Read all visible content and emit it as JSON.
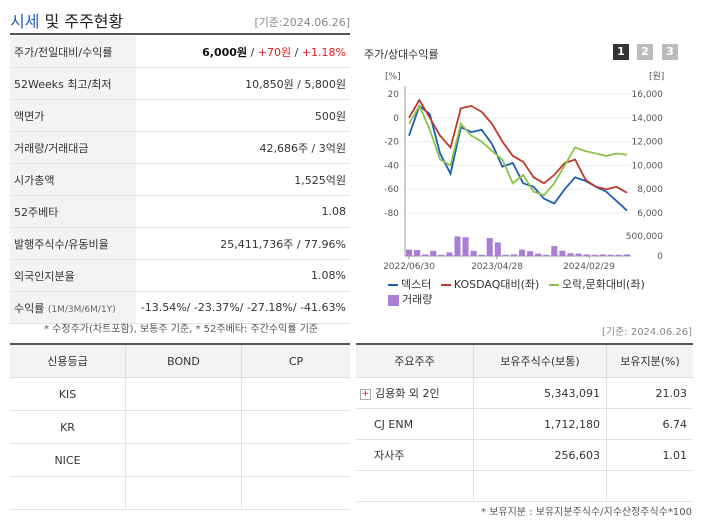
{
  "header": {
    "title_a": "시세",
    "title_b": " 및 주주현황",
    "date": "[기준:2024.06.26]"
  },
  "stock_info": {
    "rows": [
      {
        "label": "주가/전일대비/수익률"
      },
      {
        "label": "52Weeks 최고/최저",
        "value": "10,850원 / 5,800원"
      },
      {
        "label": "액면가",
        "value": "500원"
      },
      {
        "label": "거래량/거래대금",
        "value": "42,686주 / 3억원"
      },
      {
        "label": "시가총액",
        "value": "1,525억원"
      },
      {
        "label": "52주베타",
        "value": "1.08"
      },
      {
        "label": "발행주식수/유동비율",
        "value": "25,411,736주 / 77.96%"
      },
      {
        "label": "외국인지분율",
        "value": "1.08%"
      }
    ],
    "price": "6,000원",
    "sep": " / ",
    "change": "+70원",
    "rate": "+1.18%",
    "return_label": "수익률",
    "return_period": "(1M/3M/6M/1Y)",
    "returns": "-13.54%/ -23.37%/ -27.18%/ -41.63%"
  },
  "note_top": "* 수정주가(차트포함), 보통주 기준, * 52주베타: 주간수익률 기준",
  "chart": {
    "title": "주가/상대수익률",
    "tabs": [
      "1",
      "2",
      "3"
    ],
    "left_unit": "[%]",
    "right_unit": "[원]",
    "legend": {
      "s1": "덱스터",
      "s2": "KOSDAQ대비(좌)",
      "s3": "오락,문화대비(좌)",
      "vol": "거래량"
    }
  },
  "chart_data": {
    "type": "line",
    "x_ticks": [
      "2022/06/30",
      "2023/04/28",
      "2024/02/29"
    ],
    "left_axis": {
      "label": "[%]",
      "range": [
        -80,
        20
      ],
      "ticks": [
        20,
        0,
        -20,
        -40,
        -60,
        -80
      ]
    },
    "right_axis": {
      "label": "[원]",
      "range": [
        6000,
        16000
      ],
      "ticks": [
        16000,
        14000,
        12000,
        10000,
        8000,
        6000
      ]
    },
    "volume_axis": {
      "ticks": [
        500000,
        0
      ]
    },
    "series": [
      {
        "name": "덱스터",
        "color": "#1a5fb4",
        "values": [
          -15,
          10,
          3,
          -30,
          -47,
          -8,
          -12,
          -10,
          -22,
          -41,
          -38,
          -55,
          -58,
          -68,
          -72,
          -60,
          -50,
          -53,
          -58,
          -62,
          -70,
          -78
        ]
      },
      {
        "name": "KOSDAQ대비(좌)",
        "color": "#c0392b",
        "values": [
          0,
          15,
          0,
          -15,
          -25,
          8,
          10,
          5,
          -5,
          -20,
          -32,
          -37,
          -50,
          -55,
          -48,
          -38,
          -35,
          -52,
          -58,
          -60,
          -58,
          -63
        ]
      },
      {
        "name": "오락,문화대비(좌)",
        "color": "#8bc34a",
        "values": [
          -5,
          10,
          -10,
          -35,
          -40,
          -5,
          -15,
          -20,
          -28,
          -35,
          -55,
          -48,
          -62,
          -65,
          -55,
          -40,
          -25,
          -28,
          -30,
          -32,
          -30,
          -31
        ]
      },
      {
        "name": "거래량",
        "color": "#a97fd6",
        "values": [
          160000,
          150000,
          40000,
          130000,
          30000,
          90000,
          490000,
          470000,
          130000,
          30000,
          450000,
          340000,
          30000,
          40000,
          160000,
          120000,
          60000,
          30000,
          250000,
          130000,
          70000,
          60000,
          40000,
          30000,
          40000,
          30000,
          30000,
          40000
        ]
      }
    ]
  },
  "credit": {
    "headers": [
      "신용등급",
      "BOND",
      "CP"
    ],
    "rows": [
      {
        "agency": "KIS"
      },
      {
        "agency": "KR"
      },
      {
        "agency": "NICE"
      }
    ]
  },
  "holders": {
    "headers": [
      "주요주주",
      "보유주식수(보통)",
      "보유지분(%)"
    ],
    "rows": [
      {
        "name": "김용화 외 2인",
        "shares": "5,343,091",
        "pct": "21.03"
      },
      {
        "name": "CJ ENM",
        "shares": "1,712,180",
        "pct": "6.74"
      },
      {
        "name": "자사주",
        "shares": "256,603",
        "pct": "1.01"
      }
    ]
  },
  "date_bottom": "[기준: 2024.06.26]",
  "note_bottom": "* 보유지분 : 보유지분주식수/지수산정주식수*100"
}
